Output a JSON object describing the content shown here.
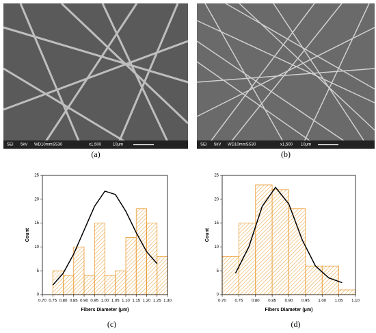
{
  "images": [
    {
      "caption": "(a)",
      "info": [
        "SEI",
        "5kV",
        "WD10mmSS30",
        "x1,500",
        "10μm"
      ]
    },
    {
      "caption": "(b)",
      "info": [
        "SEI",
        "5kV",
        "WD10mmSS30",
        "x1,500",
        "10μm"
      ]
    }
  ],
  "chart_data": [
    {
      "type": "histogram",
      "caption": "(c)",
      "xlabel": "Fibers Diameter (μm)",
      "ylabel": "Count",
      "color": "#e89a2e",
      "bins": [
        0.75,
        0.8,
        0.85,
        0.9,
        0.95,
        1.0,
        1.05,
        1.1,
        1.15,
        1.2,
        1.25,
        1.3
      ],
      "values": [
        5,
        4,
        10,
        4,
        15,
        4,
        5,
        12,
        18,
        15,
        8
      ],
      "fit": {
        "color": "#000000",
        "x": [
          0.75,
          0.8,
          0.85,
          0.9,
          0.95,
          1.0,
          1.05,
          1.1,
          1.15,
          1.2,
          1.25
        ],
        "values": [
          2,
          4.5,
          8.5,
          13.5,
          18.5,
          21.7,
          21,
          17.5,
          13,
          9,
          6.5
        ]
      },
      "xlim": [
        0.7,
        1.3
      ],
      "ylim": [
        0,
        25
      ],
      "xticks": [
        {
          "value": 0.7,
          "label": "0.70"
        },
        {
          "value": 0.75,
          "label": "0.75"
        },
        {
          "value": 0.8,
          "label": "0.80"
        },
        {
          "value": 0.85,
          "label": "0.85"
        },
        {
          "value": 0.9,
          "label": "0.90"
        },
        {
          "value": 0.95,
          "label": "0.95"
        },
        {
          "value": 1.0,
          "label": "1.00"
        },
        {
          "value": 1.05,
          "label": "1.05"
        },
        {
          "value": 1.1,
          "label": "1.10"
        },
        {
          "value": 1.15,
          "label": "1.15"
        },
        {
          "value": 1.2,
          "label": "1.20"
        },
        {
          "value": 1.25,
          "label": "1.25"
        },
        {
          "value": 1.3,
          "label": "1.30"
        }
      ],
      "yticks": [
        0,
        5,
        10,
        15,
        20,
        25
      ]
    },
    {
      "type": "histogram",
      "caption": "(d)",
      "xlabel": "Fibers Diameter (μm)",
      "ylabel": "Count",
      "color": "#e89a2e",
      "bins": [
        0.7,
        0.75,
        0.8,
        0.85,
        0.9,
        0.95,
        1.0,
        1.05,
        1.1
      ],
      "values": [
        8,
        15,
        23,
        22,
        18,
        6,
        6,
        1
      ],
      "fit": {
        "color": "#000000",
        "x": [
          0.74,
          0.78,
          0.82,
          0.86,
          0.9,
          0.94,
          0.98,
          1.02,
          1.06
        ],
        "values": [
          4.5,
          10,
          18.5,
          22.5,
          19,
          11.5,
          6,
          3.5,
          2.5
        ]
      },
      "xlim": [
        0.7,
        1.1
      ],
      "ylim": [
        0,
        25
      ],
      "xticks": [
        {
          "value": 0.7,
          "label": "0.70"
        },
        {
          "value": 0.75,
          "label": "0.75"
        },
        {
          "value": 0.8,
          "label": "0.80"
        },
        {
          "value": 0.85,
          "label": "0.85"
        },
        {
          "value": 0.9,
          "label": "0.90"
        },
        {
          "value": 0.95,
          "label": "0.95"
        },
        {
          "value": 1.0,
          "label": "1.00"
        },
        {
          "value": 1.05,
          "label": "1.05"
        },
        {
          "value": 1.1,
          "label": "1.10"
        }
      ],
      "yticks": [
        0,
        5,
        10,
        15,
        20,
        25
      ]
    }
  ]
}
